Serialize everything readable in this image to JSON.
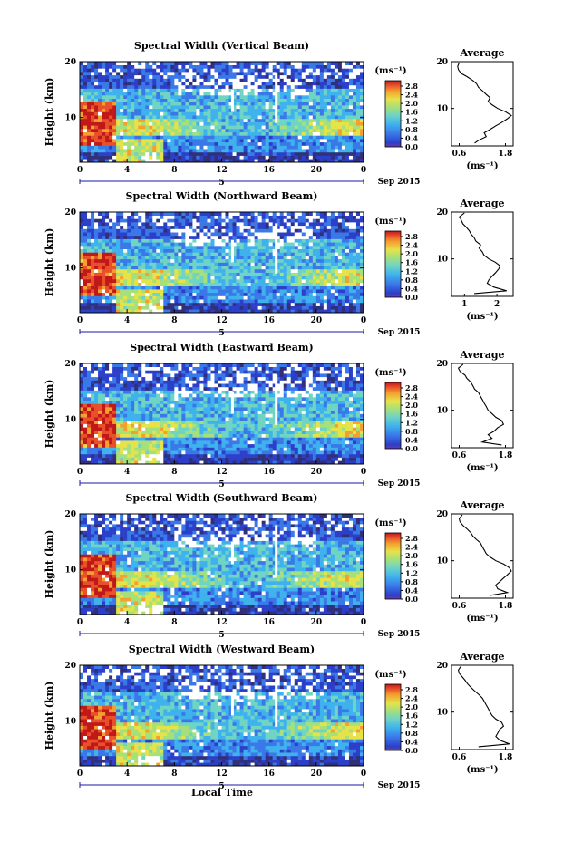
{
  "colorbar": {
    "unit": "(ms⁻¹)",
    "ticks": [
      "0.0",
      "0.4",
      "0.8",
      "1.2",
      "1.6",
      "2.0",
      "2.4",
      "2.8"
    ],
    "colors": [
      "#30307a",
      "#2c3fc9",
      "#3a78e8",
      "#3fb2ee",
      "#70d4c4",
      "#a6e07a",
      "#e6e24a",
      "#f4a030",
      "#e8502a",
      "#c01818"
    ]
  },
  "average_title": "Average",
  "date_label": "Sep 2015",
  "day_marker": "5",
  "x_axis_label": "Local Time",
  "y_axis_label": "Height (km)",
  "chart_data": [
    {
      "type": "heatmap",
      "title": "Spectral Width (Vertical Beam)",
      "xlabel": "",
      "ylabel": "Height (km)",
      "x_ticks": [
        "0",
        "4",
        "8",
        "12",
        "16",
        "20",
        "0"
      ],
      "xlim": [
        0,
        24
      ],
      "y_ticks": [
        "10",
        "20"
      ],
      "ylim": [
        2,
        20
      ],
      "zlim": [
        0,
        3.0
      ],
      "average": {
        "x_ticks": [
          "0.6",
          "1.8"
        ],
        "xlim": [
          0.4,
          2.0
        ],
        "xlabel": "(ms⁻¹)",
        "profile": [
          [
            2.6,
            1.0
          ],
          [
            3.2,
            1.1
          ],
          [
            4.0,
            1.3
          ],
          [
            4.8,
            1.25
          ],
          [
            5.5,
            1.4
          ],
          [
            6.3,
            1.55
          ],
          [
            7.0,
            1.7
          ],
          [
            7.8,
            1.85
          ],
          [
            8.5,
            1.95
          ],
          [
            9.3,
            1.8
          ],
          [
            10.0,
            1.6
          ],
          [
            10.8,
            1.45
          ],
          [
            11.5,
            1.35
          ],
          [
            12.3,
            1.4
          ],
          [
            13.0,
            1.3
          ],
          [
            13.8,
            1.2
          ],
          [
            14.5,
            1.1
          ],
          [
            15.3,
            1.05
          ],
          [
            16.0,
            0.95
          ],
          [
            16.8,
            0.8
          ],
          [
            17.5,
            0.65
          ],
          [
            18.3,
            0.58
          ],
          [
            19.0,
            0.56
          ],
          [
            19.8,
            0.6
          ]
        ]
      }
    },
    {
      "type": "heatmap",
      "title": "Spectral Width (Northward Beam)",
      "xlabel": "",
      "ylabel": "Height (km)",
      "x_ticks": [
        "0",
        "4",
        "8",
        "12",
        "16",
        "20",
        "0"
      ],
      "xlim": [
        0,
        24
      ],
      "y_ticks": [
        "10",
        "20"
      ],
      "ylim": [
        2,
        20
      ],
      "zlim": [
        0,
        3.0
      ],
      "average": {
        "x_ticks": [
          "1",
          "2"
        ],
        "xlim": [
          0.6,
          2.5
        ],
        "xlabel": "(ms⁻¹)",
        "profile": [
          [
            2.6,
            1.3
          ],
          [
            3.2,
            2.3
          ],
          [
            4.0,
            1.9
          ],
          [
            4.8,
            1.7
          ],
          [
            5.5,
            1.75
          ],
          [
            6.3,
            1.85
          ],
          [
            7.0,
            1.95
          ],
          [
            7.8,
            2.05
          ],
          [
            8.5,
            2.1
          ],
          [
            9.3,
            1.95
          ],
          [
            10.0,
            1.75
          ],
          [
            10.8,
            1.6
          ],
          [
            11.5,
            1.55
          ],
          [
            12.3,
            1.45
          ],
          [
            13.0,
            1.5
          ],
          [
            13.8,
            1.35
          ],
          [
            14.5,
            1.3
          ],
          [
            15.3,
            1.2
          ],
          [
            16.0,
            1.15
          ],
          [
            16.8,
            1.05
          ],
          [
            17.5,
            0.95
          ],
          [
            18.3,
            0.9
          ],
          [
            19.0,
            0.85
          ],
          [
            19.8,
            1.0
          ]
        ]
      }
    },
    {
      "type": "heatmap",
      "title": "Spectral Width (Eastward Beam)",
      "xlabel": "",
      "ylabel": "Height (km)",
      "x_ticks": [
        "0",
        "4",
        "8",
        "12",
        "16",
        "20",
        "0"
      ],
      "xlim": [
        0,
        24
      ],
      "y_ticks": [
        "10",
        "20"
      ],
      "ylim": [
        2,
        20
      ],
      "zlim": [
        0,
        3.0
      ],
      "average": {
        "x_ticks": [
          "0.6",
          "1.8"
        ],
        "xlim": [
          0.4,
          2.0
        ],
        "xlabel": "(ms⁻¹)",
        "profile": [
          [
            2.6,
            1.7
          ],
          [
            3.2,
            1.2
          ],
          [
            4.0,
            1.45
          ],
          [
            4.8,
            1.35
          ],
          [
            5.5,
            1.5
          ],
          [
            6.3,
            1.6
          ],
          [
            7.0,
            1.75
          ],
          [
            7.8,
            1.7
          ],
          [
            8.5,
            1.55
          ],
          [
            9.3,
            1.45
          ],
          [
            10.0,
            1.35
          ],
          [
            10.8,
            1.3
          ],
          [
            11.5,
            1.25
          ],
          [
            12.3,
            1.2
          ],
          [
            13.0,
            1.15
          ],
          [
            13.8,
            1.1
          ],
          [
            14.5,
            1.0
          ],
          [
            15.3,
            0.95
          ],
          [
            16.0,
            0.9
          ],
          [
            16.8,
            0.8
          ],
          [
            17.5,
            0.75
          ],
          [
            18.3,
            0.62
          ],
          [
            19.0,
            0.58
          ],
          [
            19.8,
            0.7
          ]
        ]
      }
    },
    {
      "type": "heatmap",
      "title": "Spectral Width (Southward Beam)",
      "xlabel": "",
      "ylabel": "Height (km)",
      "x_ticks": [
        "0",
        "4",
        "8",
        "12",
        "16",
        "20",
        "0"
      ],
      "xlim": [
        0,
        24
      ],
      "y_ticks": [
        "10",
        "20"
      ],
      "ylim": [
        2,
        20
      ],
      "zlim": [
        0,
        3.0
      ],
      "average": {
        "x_ticks": [
          "0.6",
          "1.8"
        ],
        "xlim": [
          0.4,
          2.0
        ],
        "xlabel": "(ms⁻¹)",
        "profile": [
          [
            2.6,
            1.4
          ],
          [
            3.2,
            1.85
          ],
          [
            4.0,
            1.6
          ],
          [
            4.8,
            1.55
          ],
          [
            5.5,
            1.65
          ],
          [
            6.3,
            1.75
          ],
          [
            7.0,
            1.85
          ],
          [
            7.8,
            1.95
          ],
          [
            8.5,
            1.9
          ],
          [
            9.3,
            1.75
          ],
          [
            10.0,
            1.55
          ],
          [
            10.8,
            1.4
          ],
          [
            11.5,
            1.3
          ],
          [
            12.3,
            1.25
          ],
          [
            13.0,
            1.2
          ],
          [
            13.8,
            1.15
          ],
          [
            14.5,
            1.05
          ],
          [
            15.3,
            0.95
          ],
          [
            16.0,
            0.9
          ],
          [
            16.8,
            0.8
          ],
          [
            17.5,
            0.7
          ],
          [
            18.3,
            0.62
          ],
          [
            19.0,
            0.6
          ],
          [
            19.8,
            0.68
          ]
        ]
      }
    },
    {
      "type": "heatmap",
      "title": "Spectral Width (Westward Beam)",
      "xlabel": "Local Time",
      "ylabel": "Height (km)",
      "x_ticks": [
        "0",
        "4",
        "8",
        "12",
        "16",
        "20",
        "0"
      ],
      "xlim": [
        0,
        24
      ],
      "y_ticks": [
        "10",
        "20"
      ],
      "ylim": [
        2,
        20
      ],
      "zlim": [
        0,
        3.0
      ],
      "average": {
        "x_ticks": [
          "0.6",
          "1.8"
        ],
        "xlim": [
          0.4,
          2.0
        ],
        "xlabel": "(ms⁻¹)",
        "profile": [
          [
            2.6,
            1.1
          ],
          [
            3.2,
            1.9
          ],
          [
            4.0,
            1.65
          ],
          [
            4.8,
            1.55
          ],
          [
            5.5,
            1.6
          ],
          [
            6.3,
            1.65
          ],
          [
            7.0,
            1.75
          ],
          [
            7.8,
            1.7
          ],
          [
            8.5,
            1.55
          ],
          [
            9.3,
            1.45
          ],
          [
            10.0,
            1.4
          ],
          [
            10.8,
            1.35
          ],
          [
            11.5,
            1.3
          ],
          [
            12.3,
            1.25
          ],
          [
            13.0,
            1.2
          ],
          [
            13.8,
            1.1
          ],
          [
            14.5,
            1.0
          ],
          [
            15.3,
            0.9
          ],
          [
            16.0,
            0.82
          ],
          [
            16.8,
            0.75
          ],
          [
            17.5,
            0.68
          ],
          [
            18.3,
            0.6
          ],
          [
            19.0,
            0.58
          ],
          [
            19.8,
            0.65
          ]
        ]
      }
    }
  ]
}
